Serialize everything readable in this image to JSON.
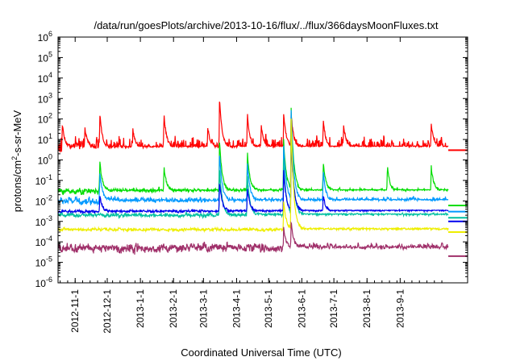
{
  "chart_data": {
    "type": "line",
    "title": "/data/run/goesPlots/archive/2013-10-16/flux/../flux/366daysMoonFluxes.txt",
    "xlabel": "Coordinated Universal Time (UTC)",
    "ylabel": {
      "prefix": "protons/cm",
      "sup": "2",
      "suffix": "-s-sr-MeV"
    },
    "yscale": "log",
    "ylim": [
      1e-06,
      1000000.0
    ],
    "xlim": [
      "2012-10-16",
      "2013-10-16"
    ],
    "grid": false,
    "x_ticks": [
      "2012-11-1",
      "2012-12-1",
      "2013-1-1",
      "2013-2-1",
      "2013-3-1",
      "2013-4-1",
      "2013-5-1",
      "2013-6-1",
      "2013-7-1",
      "2013-8-1",
      "2013-9-1"
    ],
    "y_ticks": [
      {
        "base": "10",
        "exp": "-6"
      },
      {
        "base": "10",
        "exp": "-5"
      },
      {
        "base": "10",
        "exp": "-4"
      },
      {
        "base": "10",
        "exp": "-3"
      },
      {
        "base": "10",
        "exp": "-2"
      },
      {
        "base": "10",
        "exp": "-1"
      },
      {
        "base": "10",
        "exp": "0"
      },
      {
        "base": "10",
        "exp": "1"
      },
      {
        "base": "10",
        "exp": "2"
      },
      {
        "base": "10",
        "exp": "3"
      },
      {
        "base": "10",
        "exp": "4"
      },
      {
        "base": "10",
        "exp": "5"
      },
      {
        "base": "10",
        "exp": "6"
      }
    ],
    "series": [
      {
        "color": "#ff0000",
        "baseline": 4,
        "noise_decades": 1.0,
        "end_value": 3,
        "events": [
          {
            "date": "2012-10-20",
            "peak": 60
          },
          {
            "date": "2012-11-10",
            "peak": 40
          },
          {
            "date": "2012-11-24",
            "peak": 200
          },
          {
            "date": "2012-12-25",
            "peak": 30
          },
          {
            "date": "2013-01-23",
            "peak": 200
          },
          {
            "date": "2013-03-05",
            "peak": 40
          },
          {
            "date": "2013-03-16",
            "peak": 1200
          },
          {
            "date": "2013-04-11",
            "peak": 200
          },
          {
            "date": "2013-04-24",
            "peak": 50
          },
          {
            "date": "2013-05-15",
            "peak": 200
          },
          {
            "date": "2013-05-22",
            "peak": 180
          },
          {
            "date": "2013-06-21",
            "peak": 100
          },
          {
            "date": "2013-07-10",
            "peak": 60
          },
          {
            "date": "2013-09-30",
            "peak": 60
          }
        ]
      },
      {
        "color": "#00dd00",
        "baseline": 0.03,
        "noise_decades": 0.3,
        "end_value": 0.006,
        "events": [
          {
            "date": "2012-11-24",
            "peak": 1
          },
          {
            "date": "2013-01-23",
            "peak": 0.5
          },
          {
            "date": "2013-03-16",
            "peak": 10
          },
          {
            "date": "2013-04-11",
            "peak": 3
          },
          {
            "date": "2013-05-15",
            "peak": 10
          },
          {
            "date": "2013-05-22",
            "peak": 400
          },
          {
            "date": "2013-06-21",
            "peak": 1
          },
          {
            "date": "2013-08-20",
            "peak": 0.5
          },
          {
            "date": "2013-09-30",
            "peak": 0.5
          }
        ]
      },
      {
        "color": "#0099ff",
        "baseline": 0.01,
        "noise_decades": 0.35,
        "end_value": 0.003,
        "events": [
          {
            "date": "2012-11-24",
            "peak": 0.3
          },
          {
            "date": "2013-03-16",
            "peak": 3
          },
          {
            "date": "2013-04-11",
            "peak": 1
          },
          {
            "date": "2013-05-15",
            "peak": 5
          },
          {
            "date": "2013-05-22",
            "peak": 300
          },
          {
            "date": "2013-06-21",
            "peak": 0.3
          }
        ]
      },
      {
        "color": "#00c0a0",
        "baseline": 0.002,
        "noise_decades": 0.2,
        "end_value": 0.0015,
        "events": [
          {
            "date": "2013-03-16",
            "peak": 0.5
          },
          {
            "date": "2013-04-11",
            "peak": 0.2
          },
          {
            "date": "2013-05-15",
            "peak": 1
          },
          {
            "date": "2013-05-22",
            "peak": 50
          }
        ]
      },
      {
        "color": "#0000ee",
        "baseline": 0.003,
        "noise_decades": 0.15,
        "end_value": 0.001,
        "events": [
          {
            "date": "2012-11-24",
            "peak": 0.02
          },
          {
            "date": "2013-03-16",
            "peak": 0.1
          },
          {
            "date": "2013-04-11",
            "peak": 0.05
          },
          {
            "date": "2013-05-15",
            "peak": 0.3
          },
          {
            "date": "2013-05-22",
            "peak": 10
          },
          {
            "date": "2013-06-21",
            "peak": 0.02
          }
        ]
      },
      {
        "color": "#eeee00",
        "baseline": 0.0004,
        "noise_decades": 0.15,
        "end_value": 0.0003,
        "events": [
          {
            "date": "2013-05-15",
            "peak": 0.01
          },
          {
            "date": "2013-05-22",
            "peak": 100
          }
        ]
      },
      {
        "color": "#a0306a",
        "baseline": 5e-05,
        "noise_decades": 0.45,
        "end_value": 2e-05,
        "events": [
          {
            "date": "2013-05-15",
            "peak": 0.0005
          },
          {
            "date": "2013-05-22",
            "peak": 0.001
          }
        ]
      }
    ]
  }
}
